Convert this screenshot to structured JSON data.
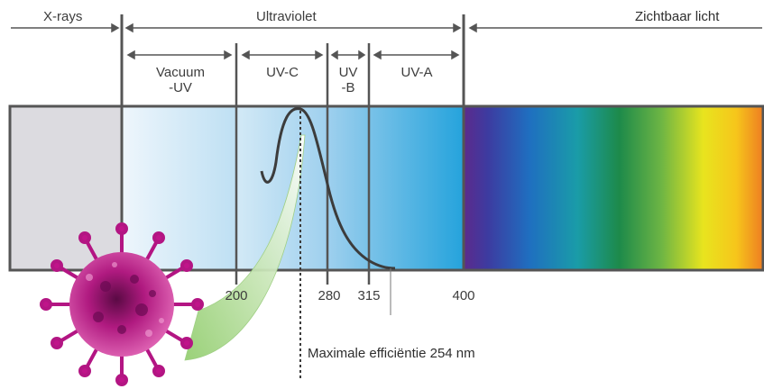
{
  "regions": {
    "xrays": "X-rays",
    "ultraviolet": "Ultraviolet",
    "visible": "Zichtbaar licht"
  },
  "subregions": {
    "vacuum_uv": [
      "Vacuum",
      "-UV"
    ],
    "uvc": "UV-C",
    "uvb": [
      "UV",
      "-B"
    ],
    "uva": "UV-A"
  },
  "ticks": [
    "200",
    "280",
    "315",
    "400"
  ],
  "annotation": "Maximale efficiëntie 254 nm",
  "colors": {
    "xray_band": "#dcdbe0",
    "frame": "#555555",
    "uv_light": "#eaf4fb",
    "uv_dark": "#29a6de",
    "virus": "#c0148a"
  },
  "icons": {
    "virus": "virus-particle-icon"
  }
}
